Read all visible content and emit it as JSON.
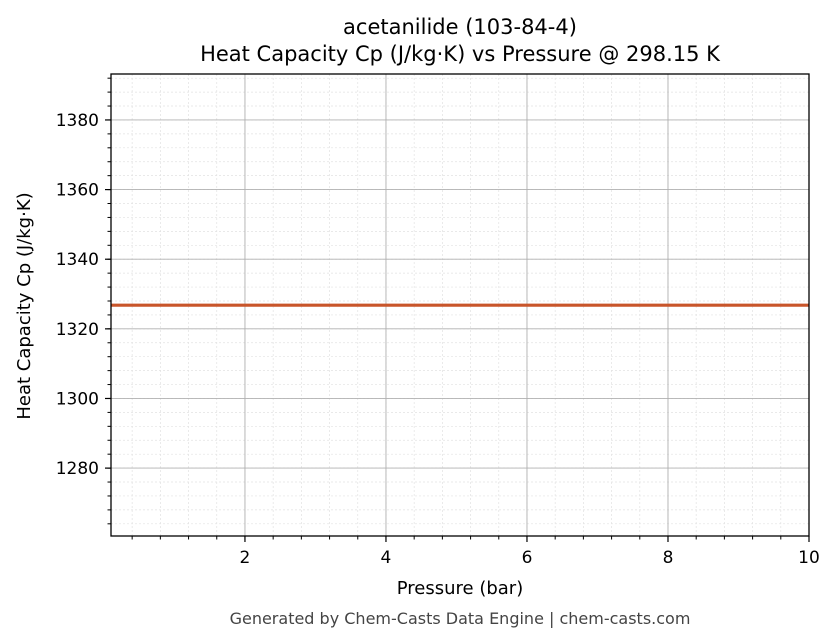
{
  "chart_data": {
    "type": "line",
    "title": "acetanilide (103-84-4)",
    "subtitle": "Heat Capacity Cp (J/kg·K) vs Pressure @ 298.15 K",
    "xlabel": "Pressure (bar)",
    "ylabel": "Heat Capacity Cp (J/kg·K)",
    "xlim": [
      0.1,
      10
    ],
    "ylim": [
      1260.5,
      1393.2
    ],
    "xticks": [
      2,
      4,
      6,
      8,
      10
    ],
    "yticks": [
      1280,
      1300,
      1320,
      1340,
      1360,
      1380
    ],
    "grid": true,
    "minor_grid": true,
    "series": [
      {
        "color": "#c8552a",
        "x": [
          0.1,
          1,
          2,
          3,
          4,
          5,
          6,
          7,
          8,
          9,
          10
        ],
        "y": [
          1326.8,
          1326.8,
          1326.8,
          1326.8,
          1326.8,
          1326.8,
          1326.8,
          1326.8,
          1326.8,
          1326.8,
          1326.8
        ]
      }
    ]
  },
  "footer": "Generated by Chem-Casts Data Engine | chem-casts.com"
}
